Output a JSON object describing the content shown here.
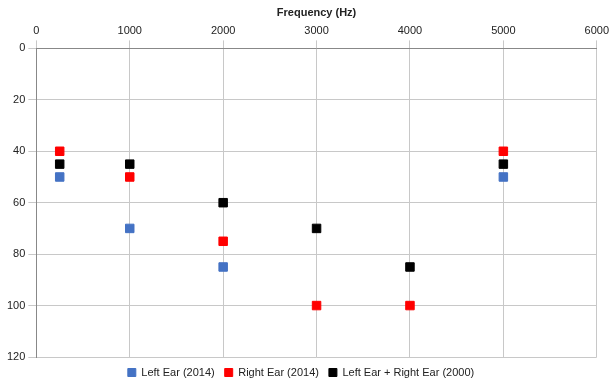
{
  "chart_data": {
    "type": "scatter",
    "x_label": "Frequency (Hz)",
    "x": [
      250,
      1000,
      2000,
      3000,
      4000,
      5000
    ],
    "series": [
      {
        "name": "Left Ear (2014)",
        "color": "#4472c4",
        "marker": "square",
        "values": [
          50,
          70,
          85,
          null,
          null,
          50
        ]
      },
      {
        "name": "Right Ear (2014)",
        "color": "#ff0000",
        "marker": "square",
        "values": [
          40,
          50,
          75,
          100,
          100,
          40
        ]
      },
      {
        "name": "Left Ear + Right Ear (2000)",
        "color": "#000000",
        "marker": "square",
        "values": [
          45,
          45,
          60,
          70,
          85,
          45
        ]
      }
    ],
    "xlim": [
      0,
      6000
    ],
    "xticks": [
      0,
      1000,
      2000,
      3000,
      4000,
      5000,
      6000
    ],
    "ylim": [
      0,
      120
    ],
    "yticks": [
      0,
      20,
      40,
      60,
      80,
      100,
      120
    ],
    "grid": true,
    "legend": "bottom"
  }
}
